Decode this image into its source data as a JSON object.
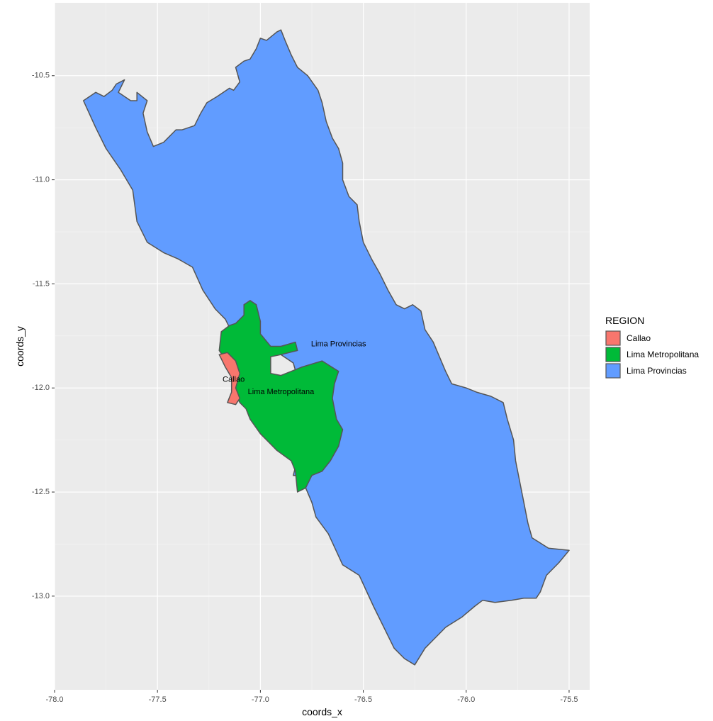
{
  "chart_data": {
    "type": "map",
    "xlabel": "coords_x",
    "ylabel": "coords_y",
    "xlim": [
      -78.0,
      -75.4
    ],
    "ylim": [
      -13.45,
      -10.15
    ],
    "x_ticks": [
      "-78.0",
      "-77.5",
      "-77.0",
      "-76.5",
      "-76.0",
      "-75.5"
    ],
    "y_ticks": [
      "-10.5",
      "-11.0",
      "-11.5",
      "-12.0",
      "-12.5",
      "-13.0"
    ],
    "grid": true,
    "panel_background": "#ebebeb",
    "legend": {
      "title": "REGION",
      "placement": "right",
      "entries": [
        {
          "name": "Callao",
          "color": "#f8766d"
        },
        {
          "name": "Lima Metropolitana",
          "color": "#00ba38"
        },
        {
          "name": "Lima Provincias",
          "color": "#619cff"
        }
      ]
    },
    "regions": [
      {
        "name": "Lima Provincias",
        "label": "Lima Provincias",
        "label_position": [
          -76.62,
          -11.79
        ],
        "color": "#619cff",
        "outline": [
          [
            -77.86,
            -10.62
          ],
          [
            -77.8,
            -10.58
          ],
          [
            -77.76,
            -10.6
          ],
          [
            -77.72,
            -10.57
          ],
          [
            -77.7,
            -10.54
          ],
          [
            -77.66,
            -10.52
          ],
          [
            -77.69,
            -10.58
          ],
          [
            -77.63,
            -10.62
          ],
          [
            -77.6,
            -10.62
          ],
          [
            -77.6,
            -10.58
          ],
          [
            -77.55,
            -10.62
          ],
          [
            -77.57,
            -10.68
          ],
          [
            -77.55,
            -10.77
          ],
          [
            -77.52,
            -10.84
          ],
          [
            -77.47,
            -10.82
          ],
          [
            -77.41,
            -10.76
          ],
          [
            -77.38,
            -10.76
          ],
          [
            -77.32,
            -10.74
          ],
          [
            -77.29,
            -10.68
          ],
          [
            -77.26,
            -10.63
          ],
          [
            -77.21,
            -10.6
          ],
          [
            -77.15,
            -10.56
          ],
          [
            -77.13,
            -10.57
          ],
          [
            -77.1,
            -10.53
          ],
          [
            -77.12,
            -10.46
          ],
          [
            -77.08,
            -10.43
          ],
          [
            -77.05,
            -10.42
          ],
          [
            -77.02,
            -10.37
          ],
          [
            -77.0,
            -10.32
          ],
          [
            -76.97,
            -10.33
          ],
          [
            -76.92,
            -10.29
          ],
          [
            -76.9,
            -10.28
          ],
          [
            -76.88,
            -10.33
          ],
          [
            -76.85,
            -10.4
          ],
          [
            -76.82,
            -10.46
          ],
          [
            -76.77,
            -10.5
          ],
          [
            -76.72,
            -10.57
          ],
          [
            -76.7,
            -10.63
          ],
          [
            -76.68,
            -10.72
          ],
          [
            -76.65,
            -10.8
          ],
          [
            -76.62,
            -10.85
          ],
          [
            -76.6,
            -10.92
          ],
          [
            -76.6,
            -11.0
          ],
          [
            -76.57,
            -11.08
          ],
          [
            -76.53,
            -11.12
          ],
          [
            -76.52,
            -11.2
          ],
          [
            -76.5,
            -11.3
          ],
          [
            -76.46,
            -11.38
          ],
          [
            -76.42,
            -11.45
          ],
          [
            -76.38,
            -11.53
          ],
          [
            -76.34,
            -11.6
          ],
          [
            -76.3,
            -11.62
          ],
          [
            -76.26,
            -11.6
          ],
          [
            -76.22,
            -11.63
          ],
          [
            -76.2,
            -11.72
          ],
          [
            -76.16,
            -11.78
          ],
          [
            -76.13,
            -11.85
          ],
          [
            -76.1,
            -11.92
          ],
          [
            -76.07,
            -11.98
          ],
          [
            -76.0,
            -12.0
          ],
          [
            -75.95,
            -12.02
          ],
          [
            -75.88,
            -12.04
          ],
          [
            -75.82,
            -12.07
          ],
          [
            -75.8,
            -12.15
          ],
          [
            -75.77,
            -12.25
          ],
          [
            -75.76,
            -12.35
          ],
          [
            -75.74,
            -12.45
          ],
          [
            -75.72,
            -12.55
          ],
          [
            -75.7,
            -12.65
          ],
          [
            -75.68,
            -12.72
          ],
          [
            -75.6,
            -12.77
          ],
          [
            -75.5,
            -12.78
          ],
          [
            -75.55,
            -12.84
          ],
          [
            -75.61,
            -12.9
          ],
          [
            -75.64,
            -12.98
          ],
          [
            -75.66,
            -13.01
          ],
          [
            -75.72,
            -13.01
          ],
          [
            -75.78,
            -13.02
          ],
          [
            -75.86,
            -13.03
          ],
          [
            -75.92,
            -13.02
          ],
          [
            -75.96,
            -13.05
          ],
          [
            -76.02,
            -13.1
          ],
          [
            -76.1,
            -13.15
          ],
          [
            -76.15,
            -13.2
          ],
          [
            -76.2,
            -13.25
          ],
          [
            -76.25,
            -13.33
          ],
          [
            -76.3,
            -13.3
          ],
          [
            -76.35,
            -13.25
          ],
          [
            -76.45,
            -13.05
          ],
          [
            -76.52,
            -12.9
          ],
          [
            -76.6,
            -12.85
          ],
          [
            -76.67,
            -12.7
          ],
          [
            -76.73,
            -12.62
          ],
          [
            -76.75,
            -12.55
          ],
          [
            -76.78,
            -12.48
          ],
          [
            -76.8,
            -12.42
          ],
          [
            -76.84,
            -12.42
          ],
          [
            -76.83,
            -12.38
          ],
          [
            -76.85,
            -12.3
          ],
          [
            -76.82,
            -12.22
          ],
          [
            -76.83,
            -12.17
          ],
          [
            -76.85,
            -12.06
          ],
          [
            -76.82,
            -11.95
          ],
          [
            -76.84,
            -11.88
          ],
          [
            -76.9,
            -11.84
          ],
          [
            -76.95,
            -11.82
          ],
          [
            -77.05,
            -11.79
          ],
          [
            -77.12,
            -11.77
          ],
          [
            -77.17,
            -11.67
          ],
          [
            -77.22,
            -11.62
          ],
          [
            -77.28,
            -11.53
          ],
          [
            -77.33,
            -11.42
          ],
          [
            -77.4,
            -11.38
          ],
          [
            -77.47,
            -11.35
          ],
          [
            -77.55,
            -11.3
          ],
          [
            -77.6,
            -11.2
          ],
          [
            -77.62,
            -11.05
          ],
          [
            -77.68,
            -10.95
          ],
          [
            -77.75,
            -10.85
          ],
          [
            -77.8,
            -10.75
          ]
        ]
      },
      {
        "name": "Lima Metropolitana",
        "label": "Lima Metropolitana",
        "label_position": [
          -76.9,
          -12.02
        ],
        "color": "#00ba38",
        "outline": [
          [
            -77.19,
            -11.73
          ],
          [
            -77.15,
            -11.7
          ],
          [
            -77.12,
            -11.69
          ],
          [
            -77.08,
            -11.65
          ],
          [
            -77.08,
            -11.6
          ],
          [
            -77.05,
            -11.58
          ],
          [
            -77.02,
            -11.6
          ],
          [
            -77.0,
            -11.68
          ],
          [
            -77.0,
            -11.74
          ],
          [
            -76.95,
            -11.8
          ],
          [
            -76.9,
            -11.8
          ],
          [
            -76.83,
            -11.78
          ],
          [
            -76.82,
            -11.82
          ],
          [
            -76.9,
            -11.84
          ],
          [
            -76.95,
            -11.85
          ],
          [
            -76.95,
            -11.93
          ],
          [
            -76.9,
            -11.94
          ],
          [
            -76.8,
            -11.9
          ],
          [
            -76.7,
            -11.87
          ],
          [
            -76.62,
            -11.92
          ],
          [
            -76.64,
            -11.98
          ],
          [
            -76.65,
            -12.05
          ],
          [
            -76.63,
            -12.15
          ],
          [
            -76.6,
            -12.2
          ],
          [
            -76.62,
            -12.28
          ],
          [
            -76.66,
            -12.35
          ],
          [
            -76.7,
            -12.4
          ],
          [
            -76.75,
            -12.42
          ],
          [
            -76.78,
            -12.48
          ],
          [
            -76.82,
            -12.5
          ],
          [
            -76.83,
            -12.4
          ],
          [
            -76.85,
            -12.35
          ],
          [
            -76.92,
            -12.3
          ],
          [
            -77.0,
            -12.22
          ],
          [
            -77.05,
            -12.15
          ],
          [
            -77.07,
            -12.1
          ],
          [
            -77.1,
            -12.07
          ],
          [
            -77.12,
            -12.03
          ],
          [
            -77.12,
            -11.95
          ],
          [
            -77.16,
            -11.88
          ],
          [
            -77.2,
            -11.82
          ]
        ]
      },
      {
        "name": "Callao",
        "label": "Callao",
        "label_position": [
          -77.13,
          -11.96
        ],
        "color": "#f8766d",
        "outline": [
          [
            -77.2,
            -11.84
          ],
          [
            -77.16,
            -11.83
          ],
          [
            -77.12,
            -11.87
          ],
          [
            -77.1,
            -11.93
          ],
          [
            -77.12,
            -12.0
          ],
          [
            -77.1,
            -12.05
          ],
          [
            -77.12,
            -12.08
          ],
          [
            -77.16,
            -12.07
          ],
          [
            -77.14,
            -12.02
          ],
          [
            -77.14,
            -11.95
          ],
          [
            -77.17,
            -11.9
          ]
        ]
      }
    ]
  }
}
